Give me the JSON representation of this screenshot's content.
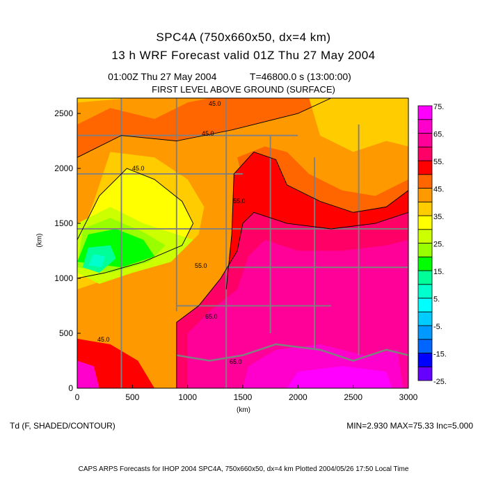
{
  "header": {
    "title": "SPC4A (750x660x50, dx=4 km)",
    "subtitle": "13 h WRF Forecast valid 01Z Thu 27 May 2004",
    "time_left": "01:00Z Thu 27 May 2004",
    "time_right": "T=46800.0 s (13:00:00)",
    "level": "FIRST LEVEL ABOVE GROUND (SURFACE)"
  },
  "axes": {
    "xlabel": "(km)",
    "ylabel": "(km)"
  },
  "variable": "Td (F, SHADED/CONTOUR)",
  "stats": "MIN=2.930  MAX=75.33  Inc=5.000",
  "footer": "CAPS ARPS Forecasts for IHOP 2004   SPC4A, 750x660x50, dx=4 km   Plotted 2004/05/26 17:50 Local Time",
  "contour_labels": [
    "45.0",
    "45.0",
    "45.0",
    "55.0",
    "55.0",
    "65.0",
    "65.0",
    "45.0"
  ],
  "chart_data": {
    "type": "heatmap",
    "title": "SPC4A (750x660x50, dx=4 km)",
    "xlabel": "(km)",
    "ylabel": "(km)",
    "xlim": [
      0,
      3000
    ],
    "ylim": [
      0,
      2640
    ],
    "xticks": [
      0,
      500,
      1000,
      1500,
      2000,
      2500,
      3000
    ],
    "yticks": [
      0,
      500,
      1000,
      1500,
      2000,
      2500
    ],
    "colorbar": {
      "levels": [
        -25,
        -20,
        -15,
        -10,
        -5,
        0,
        5,
        10,
        15,
        20,
        25,
        30,
        35,
        40,
        45,
        50,
        55,
        60,
        65,
        70,
        75
      ],
      "labels": [
        "-25.",
        "-15.",
        "-5.",
        "5.",
        "15.",
        "25.",
        "35.",
        "45.",
        "55.",
        "65.",
        "75."
      ],
      "label_values": [
        -25,
        -15,
        -5,
        5,
        15,
        25,
        35,
        45,
        55,
        65,
        75
      ],
      "colors": [
        "#6600ff",
        "#0000ff",
        "#0066ff",
        "#0099ff",
        "#00ccff",
        "#00ffff",
        "#00ffcc",
        "#00ff99",
        "#00ff00",
        "#99ff00",
        "#ccff00",
        "#ffff00",
        "#ffcc00",
        "#ff9900",
        "#ff6600",
        "#ff0000",
        "#ff0066",
        "#ff0099",
        "#ff00cc",
        "#ff00ff"
      ]
    },
    "min": 2.93,
    "max": 75.33,
    "increment": 5.0
  }
}
